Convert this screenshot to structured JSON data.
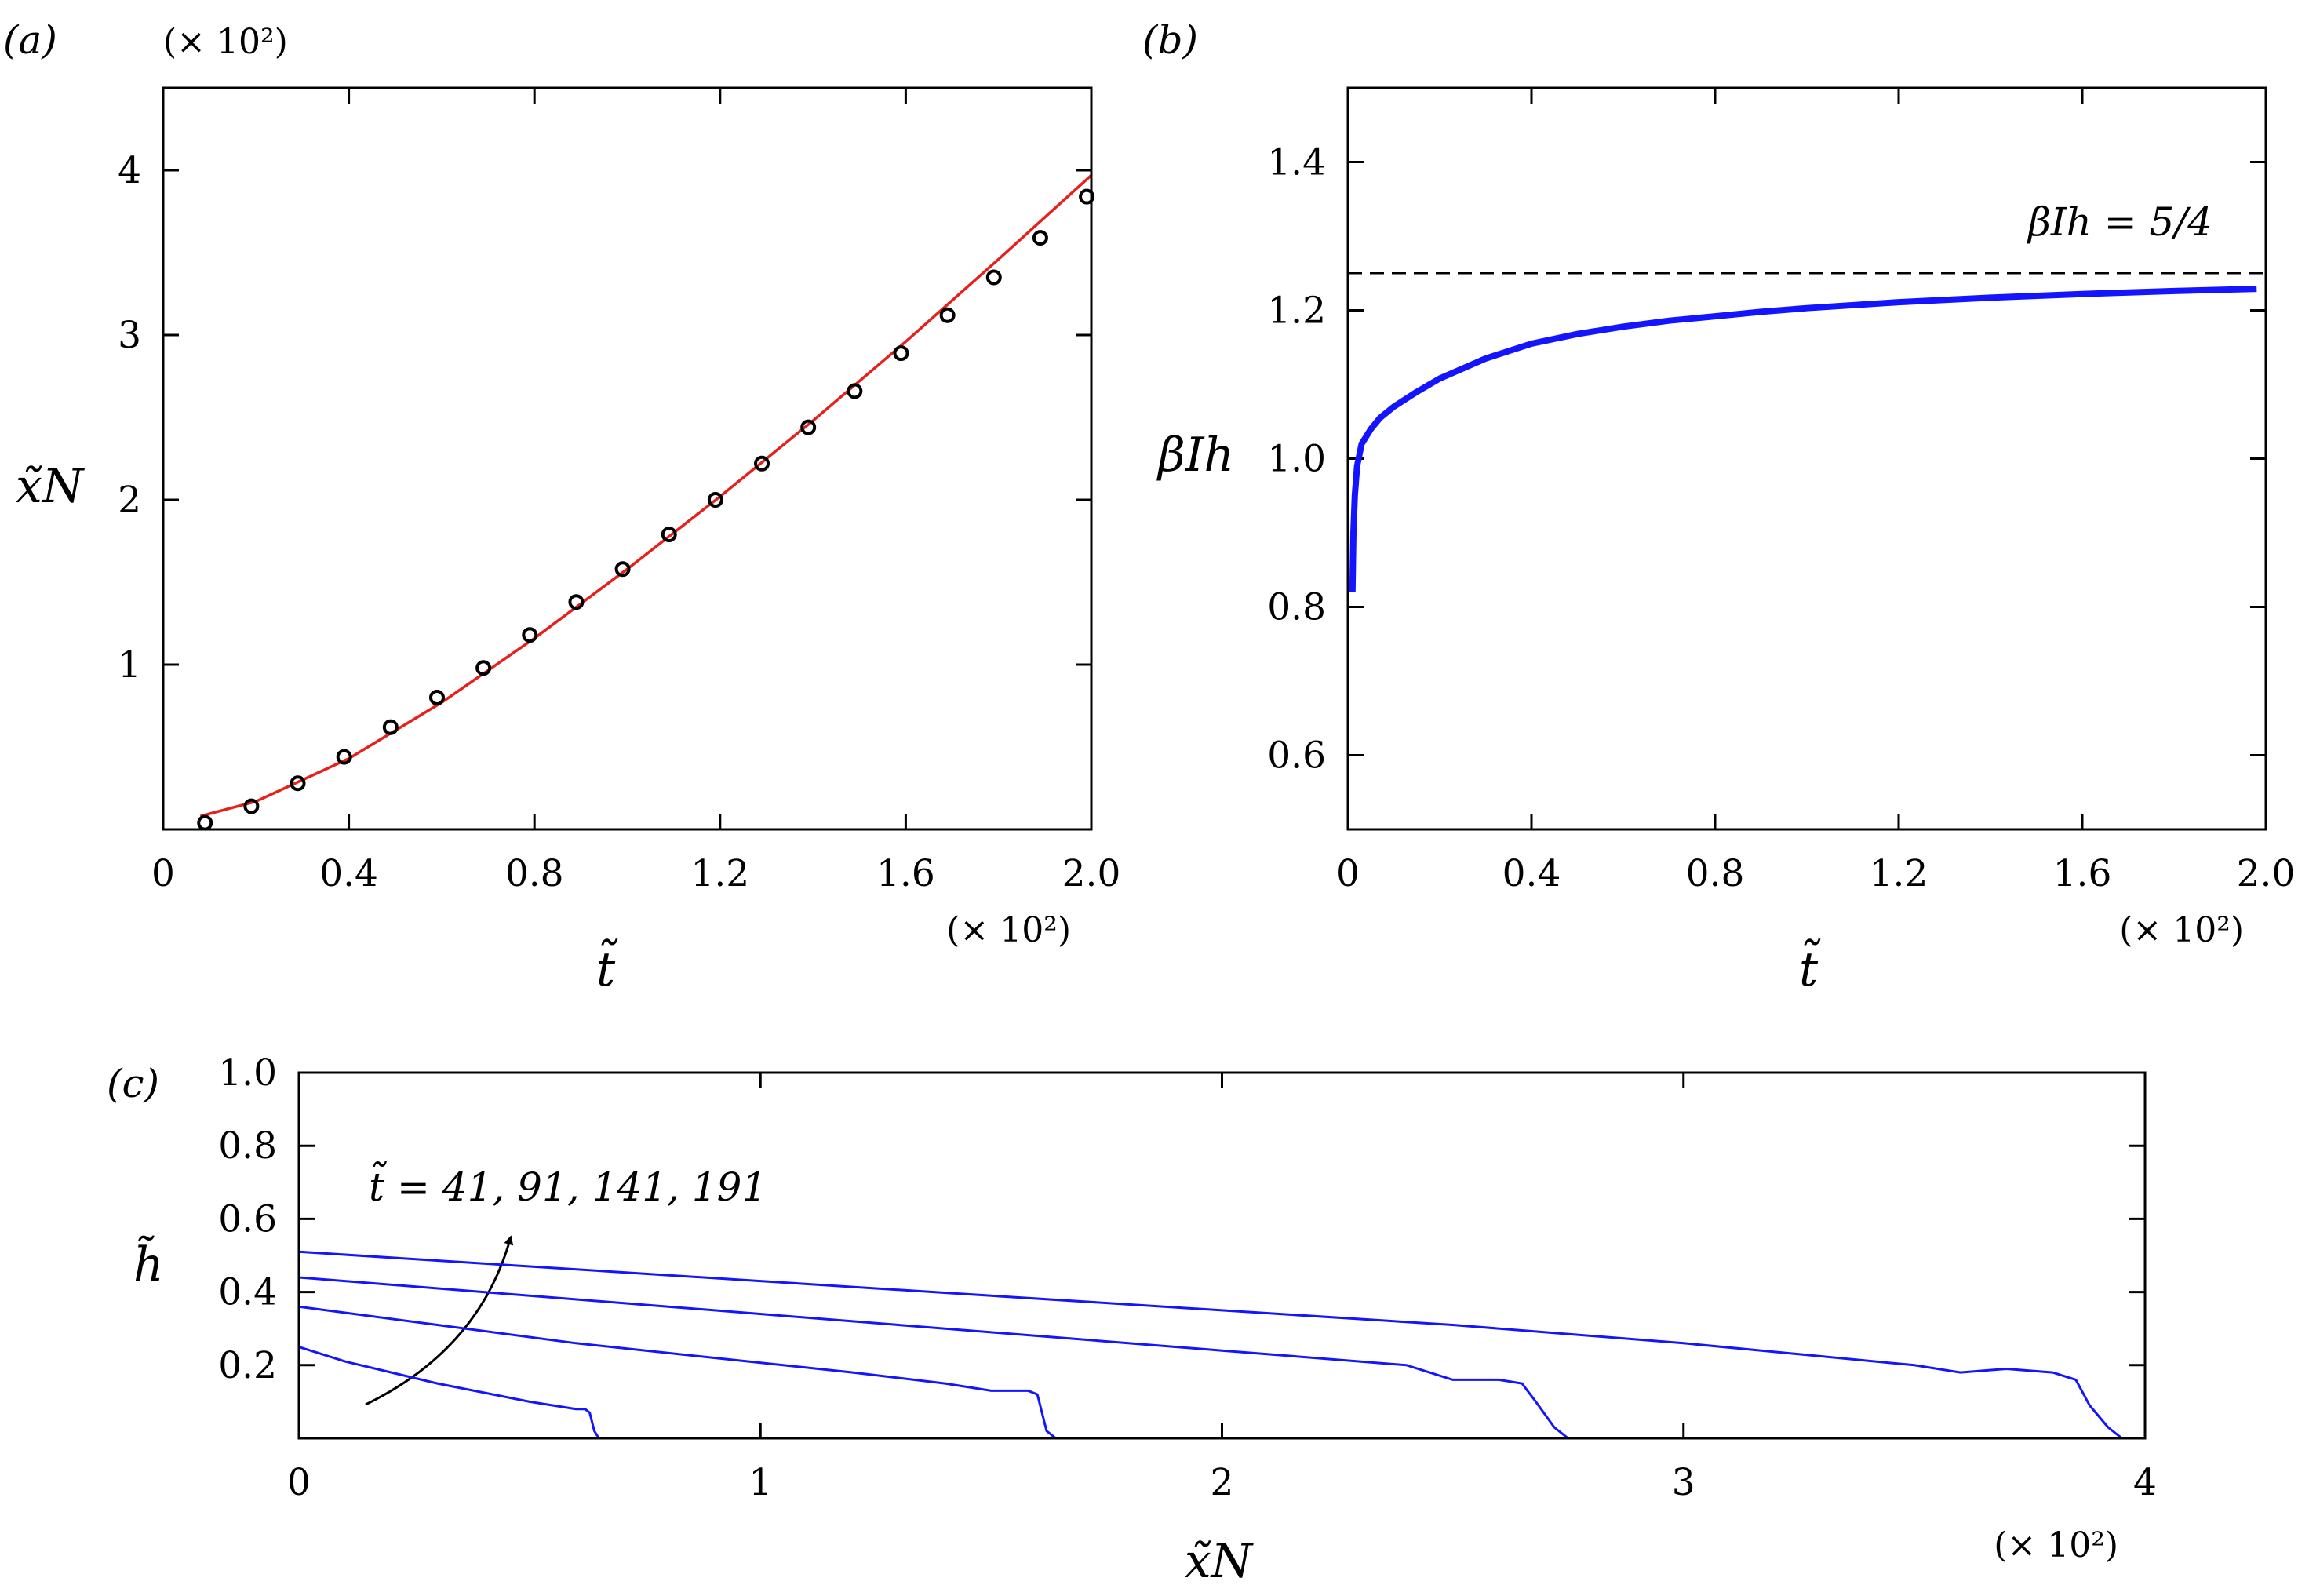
{
  "panels": {
    "a": {
      "label": "(a)",
      "xlabel": "t̃",
      "ylabel": "x̃N",
      "x_multiplier": "(× 10²)",
      "y_multiplier": "(× 10²)"
    },
    "b": {
      "label": "(b)",
      "xlabel": "t̃",
      "ylabel": "βIh",
      "x_multiplier": "(× 10²)",
      "reference_label": "βIh = 5/4"
    },
    "c": {
      "label": "(c)",
      "xlabel": "x̃N",
      "ylabel": "h̃",
      "x_multiplier": "(× 10²)",
      "annotation": "t̃ = 41, 91, 141, 191"
    }
  },
  "colors": {
    "fit_line": "#e8201c",
    "curve": "#1414ff",
    "reference": "#000000",
    "markers": "#000000"
  },
  "chart_data": [
    {
      "panel": "a",
      "type": "scatter",
      "xlim": [
        0,
        2.0
      ],
      "ylim": [
        0,
        4.5
      ],
      "xticks": [
        0,
        0.4,
        0.8,
        1.2,
        1.6,
        2.0
      ],
      "xtick_labels": [
        "0",
        "0.4",
        "0.8",
        "1.2",
        "1.6",
        "2.0"
      ],
      "yticks": [
        1,
        2,
        3,
        4
      ],
      "ytick_labels": [
        "1",
        "2",
        "3",
        "4"
      ],
      "series": [
        {
          "style": "markers",
          "x": [
            0.09,
            0.19,
            0.29,
            0.39,
            0.49,
            0.59,
            0.69,
            0.79,
            0.89,
            0.99,
            1.09,
            1.19,
            1.29,
            1.39,
            1.49,
            1.59,
            1.69,
            1.79,
            1.89,
            1.99
          ],
          "y": [
            0.04,
            0.14,
            0.28,
            0.44,
            0.62,
            0.8,
            0.98,
            1.18,
            1.38,
            1.58,
            1.79,
            2.0,
            2.22,
            2.44,
            2.66,
            2.89,
            3.12,
            3.35,
            3.59,
            3.84
          ]
        },
        {
          "style": "line",
          "x": [
            0.08,
            0.2,
            0.4,
            0.6,
            0.8,
            1.0,
            1.2,
            1.4,
            1.6,
            1.8,
            2.0
          ],
          "y": [
            0.08,
            0.17,
            0.43,
            0.77,
            1.16,
            1.58,
            2.02,
            2.48,
            2.96,
            3.46,
            3.97
          ]
        }
      ]
    },
    {
      "panel": "b",
      "type": "line",
      "xlim": [
        0,
        2.0
      ],
      "ylim": [
        0.5,
        1.5
      ],
      "xticks": [
        0,
        0.4,
        0.8,
        1.2,
        1.6,
        2.0
      ],
      "xtick_labels": [
        "0",
        "0.4",
        "0.8",
        "1.2",
        "1.6",
        "2.0"
      ],
      "yticks": [
        0.6,
        0.8,
        1.0,
        1.2,
        1.4
      ],
      "ytick_labels": [
        "0.6",
        "0.8",
        "1.0",
        "1.2",
        "1.4"
      ],
      "reference_y": 1.25,
      "series": [
        {
          "x": [
            0.01,
            0.012,
            0.015,
            0.02,
            0.03,
            0.05,
            0.07,
            0.1,
            0.15,
            0.2,
            0.3,
            0.4,
            0.5,
            0.6,
            0.7,
            0.8,
            0.9,
            1.0,
            1.2,
            1.4,
            1.6,
            1.8,
            1.98
          ],
          "y": [
            0.82,
            0.9,
            0.95,
            0.99,
            1.02,
            1.04,
            1.055,
            1.07,
            1.09,
            1.108,
            1.135,
            1.155,
            1.168,
            1.178,
            1.186,
            1.192,
            1.198,
            1.203,
            1.211,
            1.217,
            1.222,
            1.226,
            1.229
          ]
        }
      ]
    },
    {
      "panel": "c",
      "type": "line",
      "xlim": [
        0,
        4
      ],
      "ylim": [
        0,
        1.0
      ],
      "xticks": [
        0,
        1,
        2,
        3,
        4
      ],
      "xtick_labels": [
        "0",
        "1",
        "2",
        "3",
        "4"
      ],
      "yticks": [
        0.2,
        0.4,
        0.6,
        0.8,
        1.0
      ],
      "ytick_labels": [
        "0.2",
        "0.4",
        "0.6",
        "0.8",
        "1.0"
      ],
      "series": [
        {
          "x": [
            0,
            0.1,
            0.3,
            0.5,
            0.6,
            0.62,
            0.63,
            0.64,
            0.65
          ],
          "y": [
            0.25,
            0.21,
            0.15,
            0.1,
            0.08,
            0.08,
            0.07,
            0.02,
            0.0
          ]
        },
        {
          "x": [
            0,
            0.3,
            0.6,
            0.9,
            1.2,
            1.4,
            1.5,
            1.52,
            1.58,
            1.6,
            1.61,
            1.62,
            1.64
          ],
          "y": [
            0.36,
            0.31,
            0.26,
            0.22,
            0.18,
            0.15,
            0.13,
            0.13,
            0.13,
            0.12,
            0.07,
            0.02,
            0.0
          ]
        },
        {
          "x": [
            0,
            0.4,
            0.8,
            1.2,
            1.6,
            2.0,
            2.4,
            2.5,
            2.6,
            2.65,
            2.68,
            2.72,
            2.75
          ],
          "y": [
            0.44,
            0.4,
            0.36,
            0.32,
            0.28,
            0.24,
            0.2,
            0.16,
            0.16,
            0.15,
            0.1,
            0.03,
            0.0
          ]
        },
        {
          "x": [
            0,
            0.5,
            1.0,
            1.5,
            2.0,
            2.5,
            3.0,
            3.5,
            3.6,
            3.7,
            3.8,
            3.85,
            3.88,
            3.92,
            3.95
          ],
          "y": [
            0.51,
            0.47,
            0.43,
            0.39,
            0.35,
            0.31,
            0.26,
            0.2,
            0.18,
            0.19,
            0.18,
            0.16,
            0.09,
            0.03,
            0.0
          ]
        }
      ]
    }
  ]
}
